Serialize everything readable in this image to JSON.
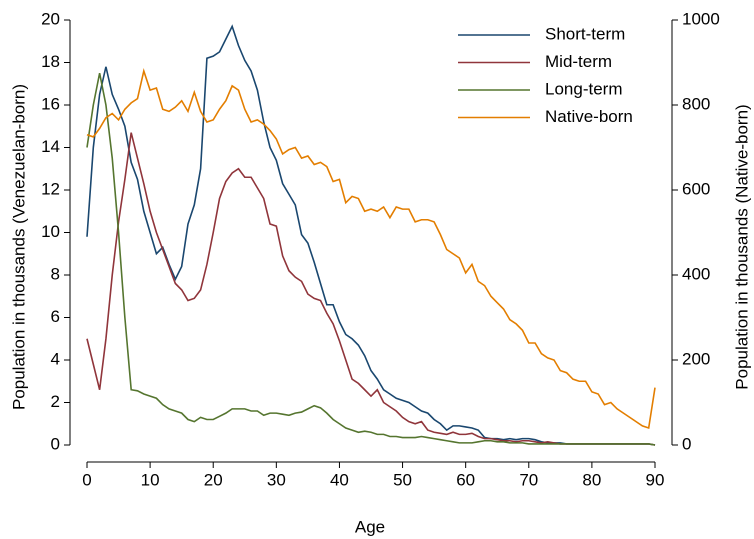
{
  "chart_data": {
    "type": "line",
    "x_label": "Age",
    "y_label": "Population in thousands (Venezuelan-born)",
    "y2_label": "Population in thousands (Native-born)",
    "x": [
      0,
      1,
      2,
      3,
      4,
      5,
      6,
      7,
      8,
      9,
      10,
      11,
      12,
      13,
      14,
      15,
      16,
      17,
      18,
      19,
      20,
      21,
      22,
      23,
      24,
      25,
      26,
      27,
      28,
      29,
      30,
      31,
      32,
      33,
      34,
      35,
      36,
      37,
      38,
      39,
      40,
      41,
      42,
      43,
      44,
      45,
      46,
      47,
      48,
      49,
      50,
      51,
      52,
      53,
      54,
      55,
      56,
      57,
      58,
      59,
      60,
      61,
      62,
      63,
      64,
      65,
      66,
      67,
      68,
      69,
      70,
      71,
      72,
      73,
      74,
      75,
      76,
      77,
      78,
      79,
      80,
      81,
      82,
      83,
      84,
      85,
      86,
      87,
      88,
      89,
      90
    ],
    "xlim": [
      0,
      90
    ],
    "xticks": [
      0,
      10,
      20,
      30,
      40,
      50,
      60,
      70,
      80,
      90
    ],
    "ylim": [
      0,
      20
    ],
    "yticks": [
      0,
      2,
      4,
      6,
      8,
      10,
      12,
      14,
      16,
      18,
      20
    ],
    "y2lim": [
      0,
      1000
    ],
    "y2ticks": [
      0,
      200,
      400,
      600,
      800,
      1000
    ],
    "legend": "top-right",
    "series": [
      {
        "name": "Short-term",
        "color": "#1a476f",
        "values": [
          9.8,
          14,
          16.5,
          17.8,
          16.5,
          15.8,
          15,
          13.3,
          12.5,
          11,
          10,
          9,
          9.3,
          8.5,
          7.8,
          8.4,
          10.4,
          11.3,
          13,
          18.2,
          18.3,
          18.5,
          19.1,
          19.7,
          18.8,
          18.1,
          17.6,
          16.7,
          15.2,
          14,
          13.4,
          12.3,
          11.8,
          11.3,
          9.9,
          9.5,
          8.6,
          7.6,
          6.6,
          6.6,
          5.8,
          5.2,
          5,
          4.7,
          4.2,
          3.5,
          3.1,
          2.6,
          2.4,
          2.2,
          2.1,
          2,
          1.8,
          1.6,
          1.5,
          1.2,
          1,
          0.7,
          0.9,
          0.9,
          0.85,
          0.8,
          0.7,
          0.35,
          0.3,
          0.3,
          0.25,
          0.3,
          0.25,
          0.3,
          0.3,
          0.25,
          0.15,
          0.1,
          0.1,
          0.1,
          0.05,
          0.05,
          0.05,
          0.05,
          0.05,
          0.05,
          0.05,
          0.05,
          0.05,
          0.05,
          0.05,
          0.05,
          0.05,
          0.05,
          0
        ]
      },
      {
        "name": "Mid-term",
        "color": "#90353b",
        "values": [
          5,
          3.8,
          2.6,
          5,
          8,
          10.5,
          12.5,
          14.7,
          13.5,
          12.3,
          11,
          10,
          9.2,
          8.4,
          7.6,
          7.3,
          6.8,
          6.9,
          7.3,
          8.5,
          10,
          11.6,
          12.4,
          12.8,
          13,
          12.6,
          12.6,
          12.1,
          11.6,
          10.4,
          10.3,
          8.9,
          8.2,
          7.9,
          7.7,
          7.1,
          6.9,
          6.8,
          6.2,
          5.7,
          4.9,
          4,
          3.1,
          2.9,
          2.6,
          2.3,
          2.6,
          2,
          1.8,
          1.6,
          1.3,
          1.1,
          1,
          1.1,
          0.7,
          0.6,
          0.55,
          0.5,
          0.6,
          0.5,
          0.5,
          0.55,
          0.4,
          0.3,
          0.3,
          0.25,
          0.2,
          0.2,
          0.15,
          0.2,
          0.2,
          0.15,
          0.1,
          0.15,
          0.1,
          0.05,
          0.05,
          0.05,
          0.05,
          0.05,
          0.05,
          0.05,
          0.05,
          0.05,
          0.05,
          0.05,
          0.05,
          0.05,
          0.05,
          0.05,
          0
        ]
      },
      {
        "name": "Long-term",
        "color": "#55752f",
        "values": [
          14,
          16,
          17.5,
          16,
          13.5,
          10,
          6,
          2.6,
          2.55,
          2.4,
          2.3,
          2.2,
          1.9,
          1.7,
          1.6,
          1.5,
          1.2,
          1.1,
          1.3,
          1.2,
          1.2,
          1.35,
          1.5,
          1.7,
          1.7,
          1.7,
          1.6,
          1.6,
          1.4,
          1.5,
          1.5,
          1.45,
          1.4,
          1.5,
          1.55,
          1.7,
          1.85,
          1.75,
          1.5,
          1.2,
          1,
          0.8,
          0.7,
          0.6,
          0.65,
          0.6,
          0.5,
          0.5,
          0.4,
          0.4,
          0.35,
          0.35,
          0.35,
          0.4,
          0.35,
          0.3,
          0.25,
          0.2,
          0.15,
          0.1,
          0.1,
          0.1,
          0.15,
          0.2,
          0.2,
          0.15,
          0.15,
          0.1,
          0.1,
          0.1,
          0.05,
          0.05,
          0.05,
          0.05,
          0.05,
          0.05,
          0.05,
          0.05,
          0.05,
          0.05,
          0.05,
          0.05,
          0.05,
          0.05,
          0.05,
          0.05,
          0.05,
          0.05,
          0.05,
          0.05,
          0
        ]
      },
      {
        "name": "Native-born",
        "color": "#e37e00",
        "axis": "y2",
        "values": [
          730,
          725,
          745,
          770,
          780,
          765,
          790,
          805,
          815,
          880,
          835,
          840,
          790,
          785,
          795,
          810,
          785,
          830,
          785,
          760,
          765,
          790,
          810,
          845,
          835,
          790,
          760,
          765,
          755,
          740,
          720,
          685,
          695,
          700,
          675,
          680,
          660,
          665,
          655,
          620,
          625,
          570,
          585,
          580,
          550,
          555,
          550,
          560,
          535,
          560,
          555,
          555,
          525,
          530,
          530,
          525,
          495,
          460,
          450,
          440,
          405,
          425,
          385,
          375,
          350,
          335,
          320,
          295,
          285,
          270,
          240,
          240,
          215,
          205,
          200,
          175,
          170,
          155,
          150,
          150,
          125,
          120,
          95,
          100,
          85,
          75,
          65,
          55,
          45,
          40,
          135
        ]
      }
    ]
  }
}
